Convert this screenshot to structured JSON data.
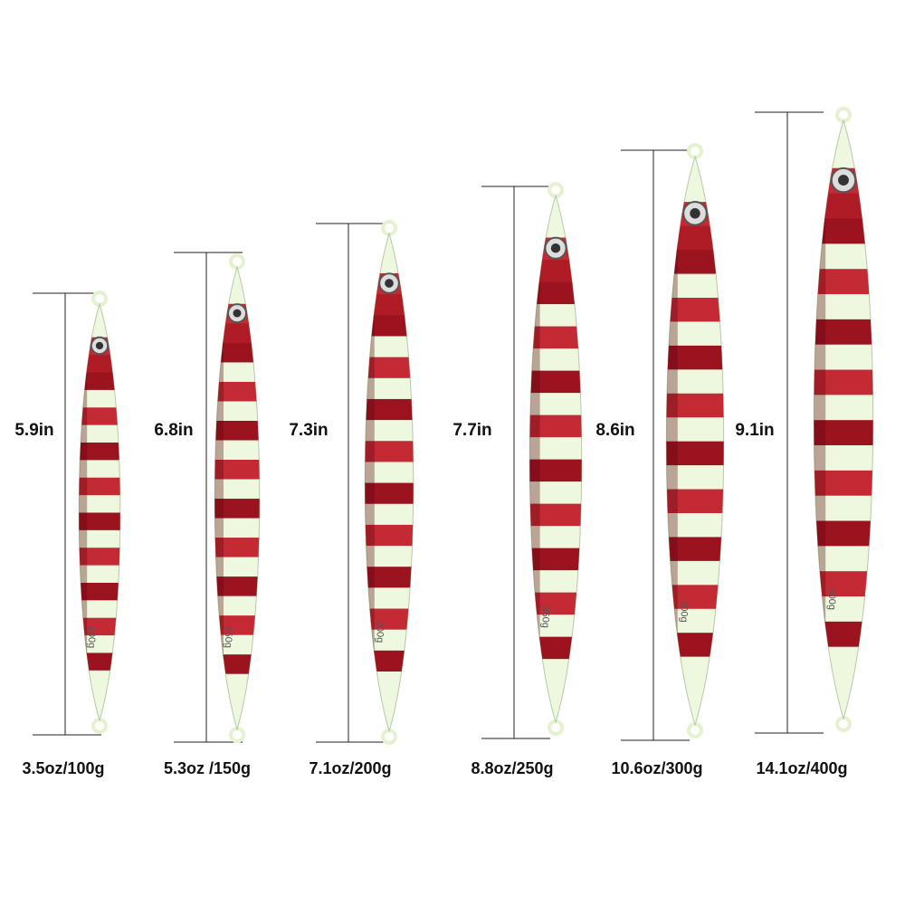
{
  "items": [
    {
      "length": "5.9in",
      "weight": "3.5oz/100g",
      "stamp": "100g"
    },
    {
      "length": "6.8in",
      "weight": "5.3oz /150g",
      "stamp": "150g"
    },
    {
      "length": "7.3in",
      "weight": "7.1oz/200g",
      "stamp": "200g"
    },
    {
      "length": "7.7in",
      "weight": "8.8oz/250g",
      "stamp": "250g"
    },
    {
      "length": "8.6in",
      "weight": "10.6oz/300g",
      "stamp": "300g"
    },
    {
      "length": "9.1in",
      "weight": "14.1oz/400g",
      "stamp": "400g"
    }
  ]
}
